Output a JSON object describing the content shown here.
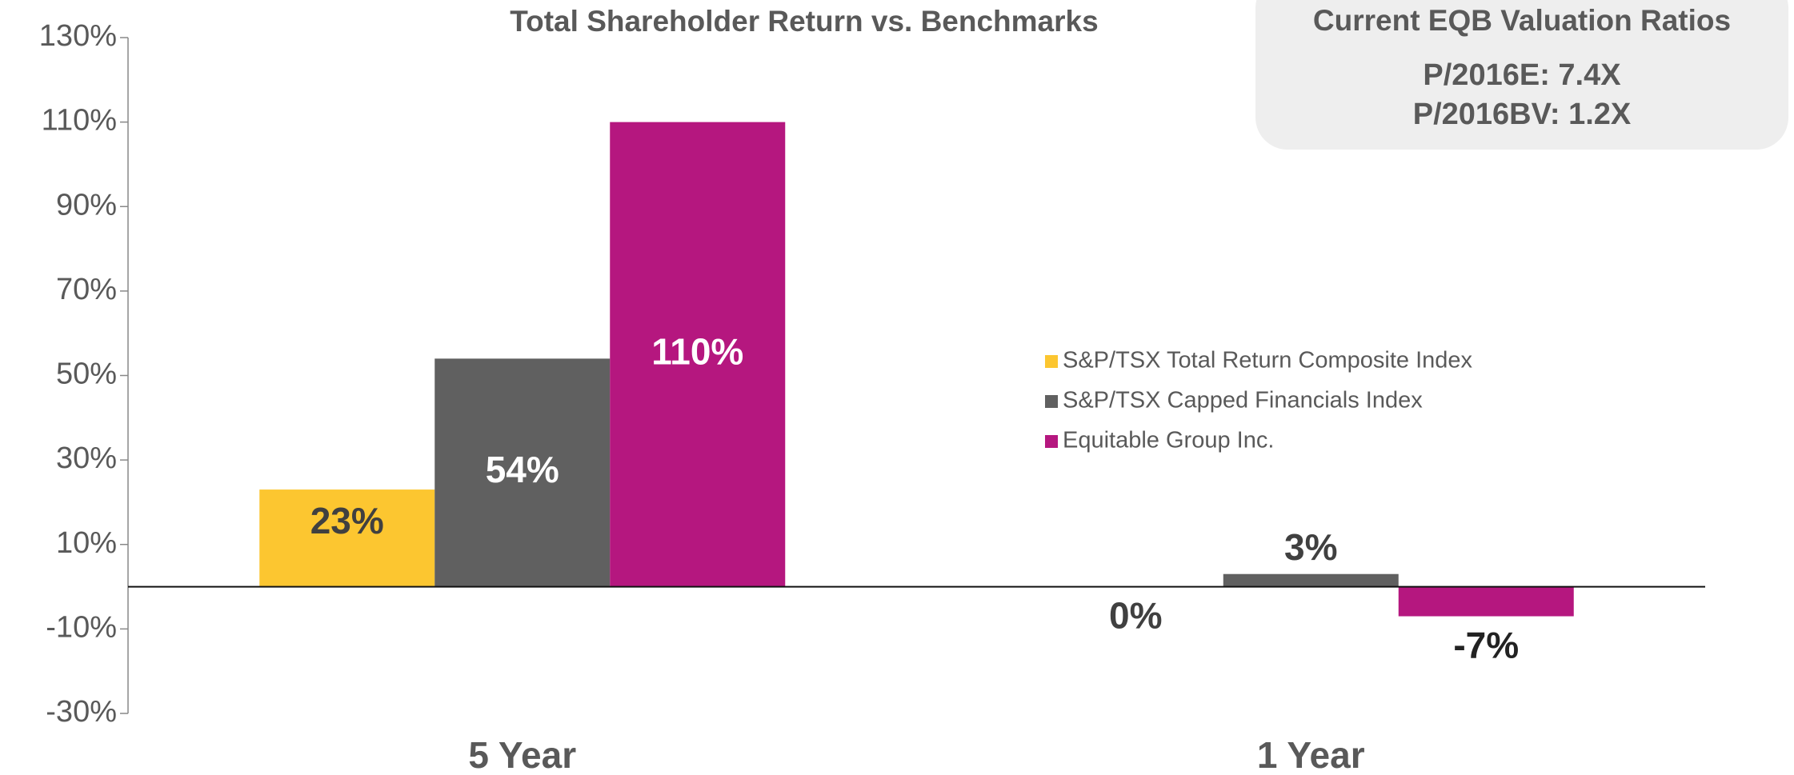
{
  "chart_data": {
    "type": "bar",
    "title": "Total Shareholder Return vs. Benchmarks",
    "categories": [
      "5 Year",
      "1 Year"
    ],
    "series": [
      {
        "name": "S&P/TSX Total Return Composite Index",
        "color": "#fcc630",
        "values": [
          23,
          0
        ],
        "value_labels": [
          "23%",
          "0%"
        ]
      },
      {
        "name": "S&P/TSX Capped Financials Index",
        "color": "#606060",
        "values": [
          54,
          3
        ],
        "value_labels": [
          "54%",
          "3%"
        ]
      },
      {
        "name": "Equitable Group Inc.",
        "color": "#b5177f",
        "values": [
          110,
          -7
        ],
        "value_labels": [
          "110%",
          "-7%"
        ]
      }
    ],
    "ylim": [
      -30,
      130
    ],
    "yticks": [
      {
        "value": -30,
        "label": "-30%"
      },
      {
        "value": -10,
        "label": "-10%"
      },
      {
        "value": 10,
        "label": "10%"
      },
      {
        "value": 30,
        "label": "30%"
      },
      {
        "value": 50,
        "label": "50%"
      },
      {
        "value": 70,
        "label": "70%"
      },
      {
        "value": 90,
        "label": "90%"
      },
      {
        "value": 110,
        "label": "110%"
      },
      {
        "value": 130,
        "label": "130%"
      }
    ],
    "grid": false,
    "legend": "center"
  },
  "info_box": {
    "title": "Current EQB Valuation Ratios",
    "lines": [
      "P/2016E: 7.4X",
      "P/2016BV: 1.2X"
    ]
  }
}
